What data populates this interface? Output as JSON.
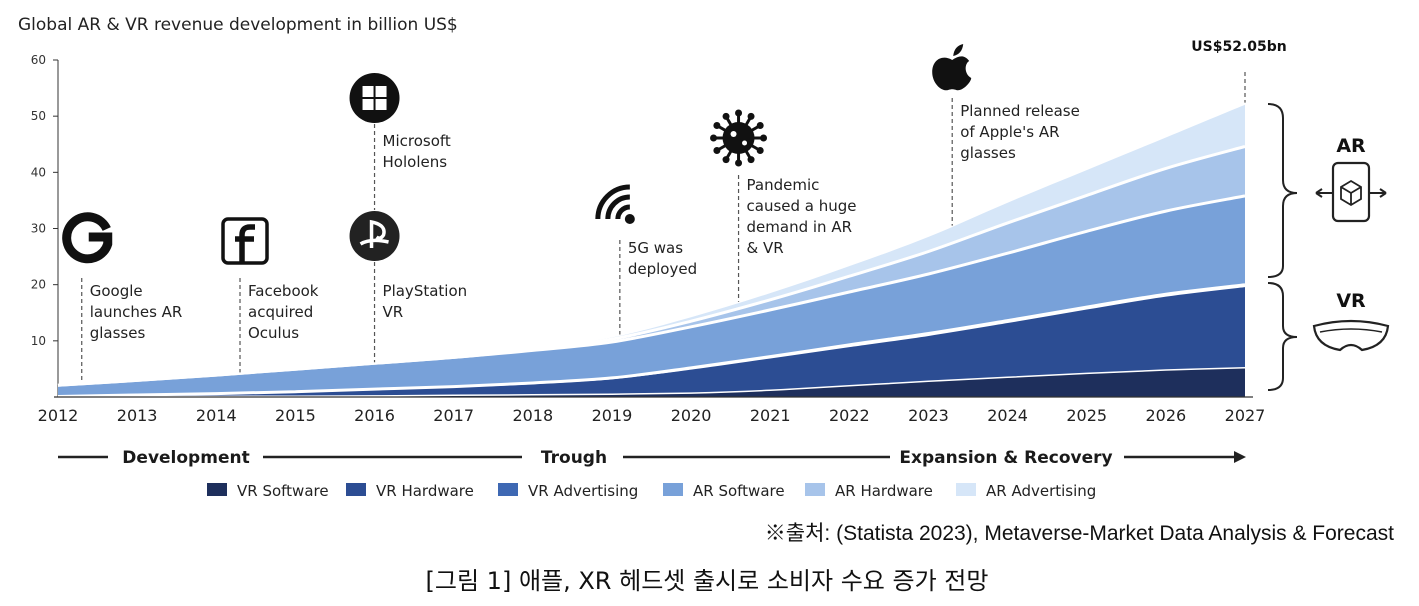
{
  "chart_data": {
    "type": "area",
    "stacked": true,
    "title": "Global AR & VR revenue development in billion US$",
    "x": [
      2012,
      2013,
      2014,
      2015,
      2016,
      2017,
      2018,
      2019,
      2020,
      2021,
      2022,
      2023,
      2024,
      2025,
      2026,
      2027
    ],
    "ylim": [
      0,
      60
    ],
    "yticks": [
      10,
      20,
      30,
      40,
      50,
      60
    ],
    "series": [
      {
        "name": "VR Software",
        "color": "#1e2f5c",
        "values": [
          0,
          0.05,
          0.1,
          0.15,
          0.2,
          0.3,
          0.4,
          0.5,
          0.7,
          1.2,
          2.0,
          2.8,
          3.5,
          4.2,
          4.8,
          5.2
        ]
      },
      {
        "name": "VR Hardware",
        "color": "#2c4d93",
        "values": [
          0.1,
          0.3,
          0.5,
          0.8,
          1.2,
          1.5,
          2.0,
          2.8,
          4.3,
          5.8,
          7.0,
          8.2,
          9.8,
          11.5,
          13.2,
          14.5
        ]
      },
      {
        "name": "VR Advertising",
        "color": "#3e68b3",
        "values": [
          0,
          0,
          0,
          0,
          0,
          0.05,
          0.1,
          0.1,
          0.2,
          0.2,
          0.3,
          0.3,
          0.3,
          0.3,
          0.3,
          0.3
        ]
      },
      {
        "name": "AR Software",
        "color": "#78a1d9",
        "values": [
          2.0,
          2.6,
          3.3,
          4.0,
          4.6,
          5.2,
          5.8,
          6.4,
          7.3,
          8.3,
          9.4,
          10.6,
          12.0,
          13.5,
          14.8,
          15.8
        ]
      },
      {
        "name": "AR Hardware",
        "color": "#a7c4ea",
        "values": [
          0,
          0,
          0,
          0,
          0,
          0,
          0.2,
          0.5,
          1.0,
          1.8,
          2.8,
          4.0,
          5.4,
          6.4,
          7.6,
          8.8
        ]
      },
      {
        "name": "AR Advertising",
        "color": "#d6e6f8",
        "values": [
          0,
          0,
          0,
          0,
          0,
          0,
          0.1,
          0.3,
          0.7,
          1.2,
          1.8,
          2.6,
          3.6,
          4.5,
          5.5,
          7.45
        ]
      }
    ],
    "peak_label": "US$52.05bn",
    "segments": [
      "AR",
      "VR"
    ],
    "phases": [
      "Development",
      "Trough",
      "Expansion & Recovery"
    ],
    "annotations": [
      {
        "year": 2012.3,
        "icon": "google-logo-icon",
        "lines": [
          "Google",
          "launches AR",
          "glasses"
        ]
      },
      {
        "year": 2014.3,
        "icon": "facebook-logo-icon",
        "lines": [
          "Facebook",
          "acquired",
          "Oculus"
        ]
      },
      {
        "year": 2016.0,
        "icon": "playstation-logo-icon",
        "lines": [
          "PlayStation",
          "VR"
        ]
      },
      {
        "year": 2016.0,
        "icon": "windows-logo-icon",
        "lines": [
          "Microsoft",
          "Hololens"
        ]
      },
      {
        "year": 2019.1,
        "icon": "5g-signal-icon",
        "lines": [
          "5G was",
          "deployed"
        ]
      },
      {
        "year": 2020.6,
        "icon": "virus-icon",
        "lines": [
          "Pandemic",
          "caused a huge",
          "demand in AR",
          "& VR"
        ]
      },
      {
        "year": 2023.3,
        "icon": "apple-logo-icon",
        "lines": [
          "Planned release",
          "of Apple's AR",
          "glasses"
        ]
      }
    ]
  },
  "source_note": "※출처: (Statista 2023), Metaverse-Market Data Analysis & Forecast",
  "caption": "[그림 1] 애플, XR 헤드셋 출시로 소비자 수요 증가 전망"
}
